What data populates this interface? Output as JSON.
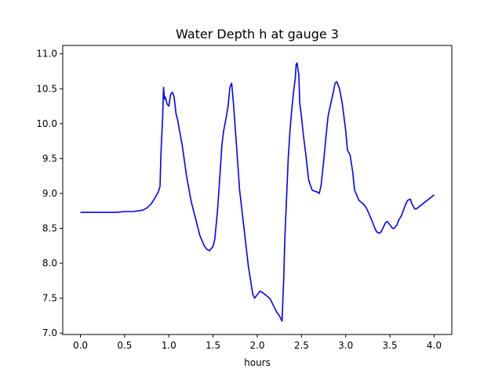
{
  "chart_data": {
    "type": "line",
    "title": "Water Depth h at gauge 3",
    "xlabel": "hours",
    "ylabel": "",
    "xlim": [
      -0.2,
      4.2
    ],
    "ylim": [
      6.98,
      11.12
    ],
    "grid": false,
    "legend": "none",
    "x_ticks": [
      0.0,
      0.5,
      1.0,
      1.5,
      2.0,
      2.5,
      3.0,
      3.5,
      4.0
    ],
    "x_tick_labels": [
      "0.0",
      "0.5",
      "1.0",
      "1.5",
      "2.0",
      "2.5",
      "3.0",
      "3.5",
      "4.0"
    ],
    "y_ticks": [
      7.0,
      7.5,
      8.0,
      8.5,
      9.0,
      9.5,
      10.0,
      10.5,
      11.0
    ],
    "y_tick_labels": [
      "7.0",
      "7.5",
      "8.0",
      "8.5",
      "9.0",
      "9.5",
      "10.0",
      "10.5",
      "11.0"
    ],
    "series": [
      {
        "color": "#0000ff",
        "x": [
          0.0,
          0.1,
          0.2,
          0.3,
          0.4,
          0.5,
          0.6,
          0.7,
          0.75,
          0.8,
          0.85,
          0.88,
          0.9,
          0.91,
          0.93,
          0.94,
          0.95,
          0.96,
          0.98,
          1.0,
          1.02,
          1.04,
          1.06,
          1.08,
          1.1,
          1.12,
          1.15,
          1.2,
          1.25,
          1.3,
          1.35,
          1.4,
          1.43,
          1.46,
          1.5,
          1.52,
          1.55,
          1.58,
          1.6,
          1.62,
          1.65,
          1.67,
          1.69,
          1.71,
          1.73,
          1.77,
          1.8,
          1.85,
          1.9,
          1.95,
          1.97,
          2.0,
          2.03,
          2.06,
          2.09,
          2.12,
          2.15,
          2.18,
          2.22,
          2.25,
          2.28,
          2.3,
          2.31,
          2.33,
          2.35,
          2.37,
          2.39,
          2.41,
          2.43,
          2.44,
          2.45,
          2.46,
          2.47,
          2.48,
          2.5,
          2.52,
          2.55,
          2.58,
          2.6,
          2.62,
          2.65,
          2.68,
          2.7,
          2.72,
          2.75,
          2.78,
          2.8,
          2.83,
          2.86,
          2.88,
          2.9,
          2.93,
          2.96,
          3.0,
          3.02,
          3.05,
          3.08,
          3.1,
          3.15,
          3.2,
          3.23,
          3.26,
          3.3,
          3.33,
          3.35,
          3.38,
          3.4,
          3.42,
          3.45,
          3.47,
          3.5,
          3.53,
          3.55,
          3.58,
          3.6,
          3.63,
          3.65,
          3.68,
          3.7,
          3.73,
          3.75,
          3.78,
          3.8,
          3.85,
          3.9,
          3.95,
          4.0
        ],
        "y": [
          8.73,
          8.73,
          8.73,
          8.73,
          8.73,
          8.74,
          8.74,
          8.76,
          8.79,
          8.85,
          8.95,
          9.02,
          9.1,
          9.55,
          10.1,
          10.52,
          10.35,
          10.38,
          10.28,
          10.25,
          10.42,
          10.45,
          10.38,
          10.15,
          10.05,
          9.9,
          9.7,
          9.25,
          8.9,
          8.65,
          8.4,
          8.25,
          8.2,
          8.18,
          8.24,
          8.35,
          8.75,
          9.3,
          9.7,
          9.9,
          10.1,
          10.25,
          10.52,
          10.58,
          10.3,
          9.6,
          9.05,
          8.5,
          7.95,
          7.55,
          7.5,
          7.55,
          7.6,
          7.58,
          7.55,
          7.52,
          7.48,
          7.4,
          7.3,
          7.25,
          7.17,
          7.8,
          8.3,
          8.9,
          9.5,
          9.9,
          10.2,
          10.45,
          10.65,
          10.85,
          10.87,
          10.78,
          10.7,
          10.3,
          10.1,
          9.85,
          9.55,
          9.2,
          9.12,
          9.05,
          9.03,
          9.02,
          9.0,
          9.1,
          9.45,
          9.85,
          10.1,
          10.28,
          10.45,
          10.58,
          10.6,
          10.5,
          10.3,
          9.9,
          9.62,
          9.55,
          9.3,
          9.05,
          8.9,
          8.85,
          8.8,
          8.72,
          8.6,
          8.5,
          8.45,
          8.43,
          8.45,
          8.5,
          8.58,
          8.6,
          8.55,
          8.5,
          8.5,
          8.55,
          8.62,
          8.68,
          8.75,
          8.85,
          8.9,
          8.92,
          8.85,
          8.78,
          8.78,
          8.83,
          8.88,
          8.93,
          8.98
        ]
      }
    ]
  }
}
